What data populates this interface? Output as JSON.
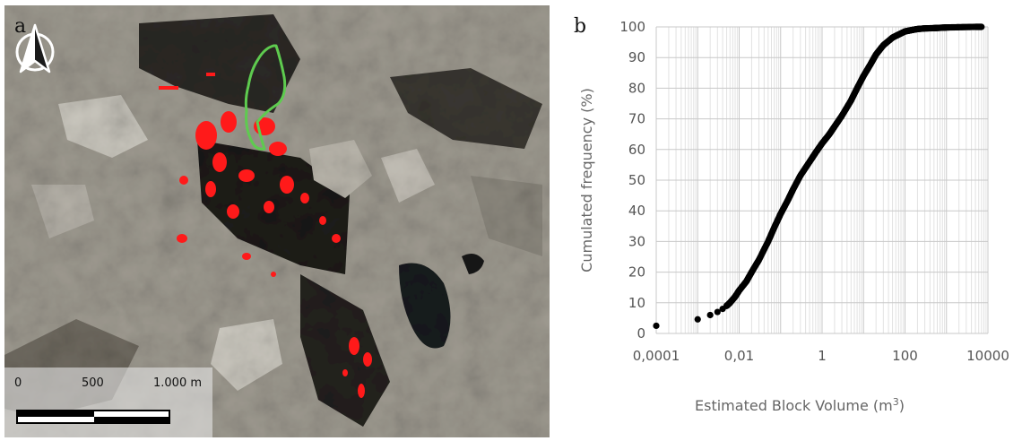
{
  "panel_a": {
    "letter": "a",
    "scale_bar": {
      "labels": [
        "0",
        "500",
        "1.000 m"
      ]
    }
  },
  "panel_b": {
    "letter": "b"
  },
  "chart_data": {
    "type": "scatter",
    "title": "",
    "xlabel": "Estimated Block Volume (m",
    "xlabel_sup": "3",
    "xlabel_close": ")",
    "ylabel": "Cumulated frequency (%)",
    "x_scale": "log",
    "xlim": [
      0.0001,
      10000
    ],
    "ylim": [
      0,
      100
    ],
    "x_ticks": [
      "0,0001",
      "0,01",
      "1",
      "100",
      "10000"
    ],
    "y_ticks": [
      "0",
      "10",
      "20",
      "30",
      "40",
      "50",
      "60",
      "70",
      "80",
      "90",
      "100"
    ],
    "grid": true,
    "legend": "none",
    "marker_color": "#000000",
    "series": [
      {
        "x": [
          0.0001,
          0.001,
          0.002,
          0.003,
          0.004,
          0.005,
          0.006,
          0.008,
          0.01,
          0.015,
          0.02,
          0.03,
          0.05,
          0.07,
          0.1,
          0.15,
          0.2,
          0.3,
          0.5,
          0.7,
          1,
          1.5,
          2,
          3,
          5,
          7,
          10,
          15,
          20,
          30,
          50,
          70,
          100,
          150,
          200,
          300,
          500,
          700,
          1000,
          2000,
          5000,
          7000
        ],
        "y": [
          2.5,
          4.6,
          6,
          7,
          8,
          9,
          10,
          12,
          14,
          17,
          20,
          24,
          30,
          34.5,
          39,
          43.5,
          47,
          51.5,
          56,
          59,
          62,
          65,
          67.5,
          71,
          76,
          80,
          84,
          88,
          91,
          94,
          96.5,
          97.5,
          98.5,
          99,
          99.3,
          99.5,
          99.6,
          99.7,
          99.8,
          99.9,
          100,
          100
        ]
      }
    ]
  }
}
